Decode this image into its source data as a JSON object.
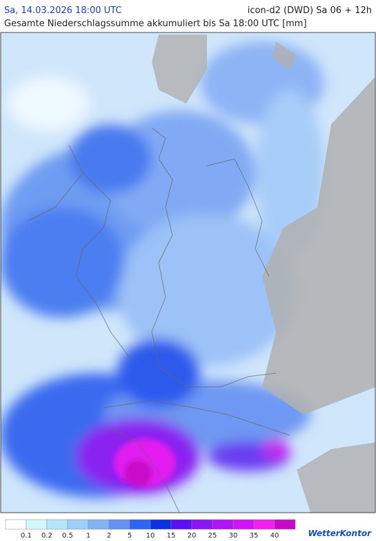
{
  "header": {
    "datetime": "Sa, 14.03.2026 18:00 UTC",
    "model": "icon-d2 (DWD) Sa 06 + 12h",
    "subtitle": "Gesamte Niederschlagssumme akkumuliert bis Sa 18:00 UTC [mm]"
  },
  "legend": {
    "labels": [
      0.1,
      0.2,
      0.5,
      1,
      2,
      5,
      10,
      15,
      20,
      25,
      30,
      35,
      40
    ],
    "colors": [
      "#ffffff",
      "#d2f8fc",
      "#b4e6fa",
      "#9cd0f8",
      "#82b4f5",
      "#6491f2",
      "#2d64f0",
      "#0a32e1",
      "#5a10f5",
      "#8c14f5",
      "#af14f5",
      "#d214f5",
      "#f51ef0",
      "#c80ac8"
    ]
  },
  "logo": "WetterKontor"
}
